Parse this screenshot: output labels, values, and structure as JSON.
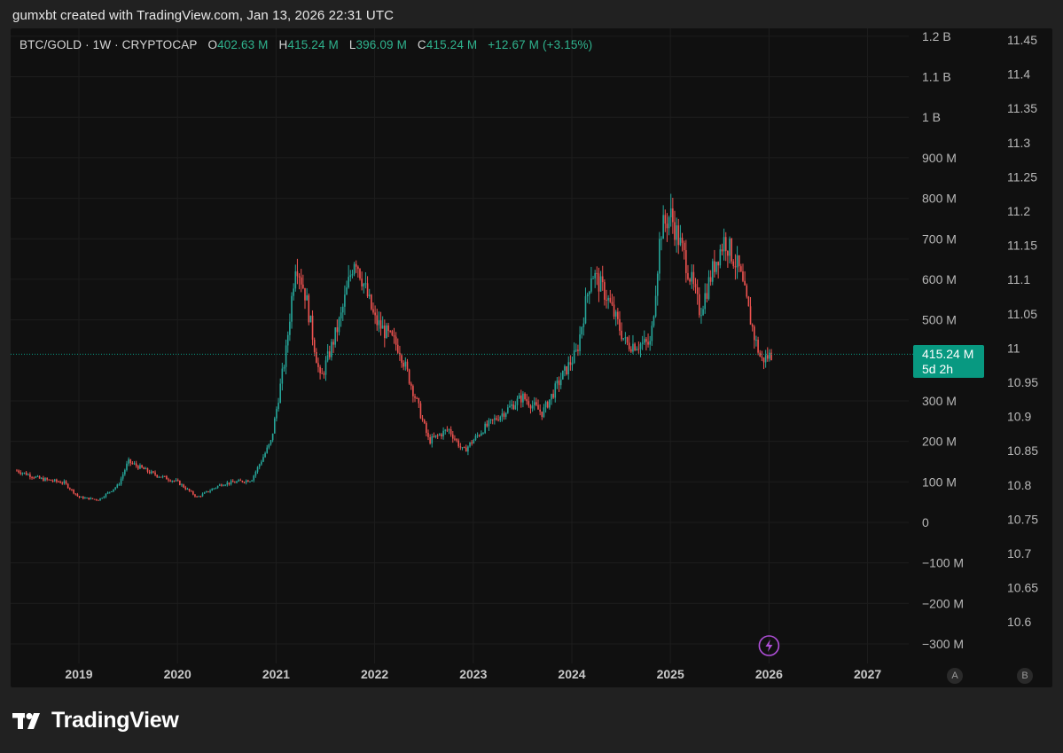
{
  "credit": "gumxbt created with TradingView.com, Jan 13, 2026 22:31 UTC",
  "legend": {
    "symbol": "BTC/GOLD · 1W · CRYPTOCAP",
    "o_label": "O",
    "o_value": "402.63 M",
    "h_label": "H",
    "h_value": "415.24 M",
    "l_label": "L",
    "l_value": "396.09 M",
    "c_label": "C",
    "c_value": "415.24 M",
    "change": "+12.67 M (+3.15%)"
  },
  "price_tag": {
    "value": "415.24 M",
    "countdown": "5d 2h"
  },
  "scale_buttons": {
    "a": "A",
    "b": "B"
  },
  "logo_text": "TradingView",
  "colors": {
    "up": "#26a69a",
    "down": "#ef5350",
    "accent": "#089981",
    "background": "#101010",
    "frame": "#212121",
    "event_marker": "#b04fd9"
  },
  "icons": {
    "event_marker": "lightning-icon",
    "logo": "tradingview-logo-icon"
  },
  "chart_data": {
    "type": "candlestick",
    "title": "BTC/GOLD · 1W · CRYPTOCAP",
    "interval": "1W",
    "x_axis": {
      "ticks": [
        "2019",
        "2020",
        "2021",
        "2022",
        "2023",
        "2024",
        "2025",
        "2026",
        "2027"
      ],
      "range": [
        "2018-05",
        "2027-04"
      ]
    },
    "y_axis_left": {
      "ticks": [
        "1.2 B",
        "1.1 B",
        "1 B",
        "900 M",
        "800 M",
        "700 M",
        "600 M",
        "500 M",
        "300 M",
        "200 M",
        "100 M",
        "0",
        "−100 M",
        "−200 M",
        "−300 M"
      ],
      "range": [
        -330000000,
        1210000000
      ]
    },
    "y_axis_right": {
      "ticks": [
        "11.45",
        "11.4",
        "11.35",
        "11.3",
        "11.25",
        "11.2",
        "11.15",
        "11.1",
        "11.05",
        "11",
        "10.95",
        "10.9",
        "10.85",
        "10.8",
        "10.75",
        "10.7",
        "10.65",
        "10.6"
      ]
    },
    "last_price": 415240000,
    "countdown": "5d 2h",
    "grid": true,
    "scale_markers": [
      "A",
      "B"
    ],
    "approx_close_path": [
      {
        "t": 2018.37,
        "v": 128000000
      },
      {
        "t": 2018.6,
        "v": 108000000
      },
      {
        "t": 2018.85,
        "v": 98000000
      },
      {
        "t": 2019.0,
        "v": 62000000
      },
      {
        "t": 2019.2,
        "v": 56000000
      },
      {
        "t": 2019.4,
        "v": 92000000
      },
      {
        "t": 2019.5,
        "v": 150000000
      },
      {
        "t": 2019.75,
        "v": 120000000
      },
      {
        "t": 2020.0,
        "v": 100000000
      },
      {
        "t": 2020.2,
        "v": 62000000
      },
      {
        "t": 2020.45,
        "v": 95000000
      },
      {
        "t": 2020.75,
        "v": 105000000
      },
      {
        "t": 2020.95,
        "v": 200000000
      },
      {
        "t": 2021.1,
        "v": 420000000
      },
      {
        "t": 2021.2,
        "v": 650000000
      },
      {
        "t": 2021.3,
        "v": 560000000
      },
      {
        "t": 2021.45,
        "v": 350000000
      },
      {
        "t": 2021.65,
        "v": 500000000
      },
      {
        "t": 2021.8,
        "v": 660000000
      },
      {
        "t": 2022.0,
        "v": 500000000
      },
      {
        "t": 2022.25,
        "v": 430000000
      },
      {
        "t": 2022.45,
        "v": 280000000
      },
      {
        "t": 2022.55,
        "v": 200000000
      },
      {
        "t": 2022.75,
        "v": 230000000
      },
      {
        "t": 2022.9,
        "v": 175000000
      },
      {
        "t": 2023.1,
        "v": 230000000
      },
      {
        "t": 2023.3,
        "v": 270000000
      },
      {
        "t": 2023.5,
        "v": 310000000
      },
      {
        "t": 2023.7,
        "v": 270000000
      },
      {
        "t": 2023.9,
        "v": 360000000
      },
      {
        "t": 2024.05,
        "v": 420000000
      },
      {
        "t": 2024.2,
        "v": 620000000
      },
      {
        "t": 2024.35,
        "v": 560000000
      },
      {
        "t": 2024.55,
        "v": 440000000
      },
      {
        "t": 2024.8,
        "v": 440000000
      },
      {
        "t": 2024.9,
        "v": 720000000
      },
      {
        "t": 2025.0,
        "v": 760000000
      },
      {
        "t": 2025.15,
        "v": 650000000
      },
      {
        "t": 2025.3,
        "v": 520000000
      },
      {
        "t": 2025.45,
        "v": 640000000
      },
      {
        "t": 2025.55,
        "v": 700000000
      },
      {
        "t": 2025.7,
        "v": 620000000
      },
      {
        "t": 2025.85,
        "v": 460000000
      },
      {
        "t": 2025.92,
        "v": 400000000
      },
      {
        "t": 2026.03,
        "v": 415240000
      }
    ],
    "last_candle": {
      "open": 402630000,
      "high": 415240000,
      "low": 396090000,
      "close": 415240000,
      "change": 12670000,
      "change_pct": 3.15
    }
  }
}
